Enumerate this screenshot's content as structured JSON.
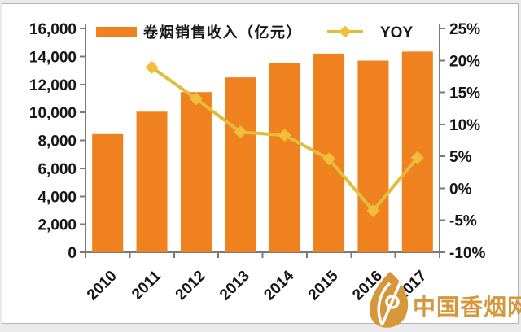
{
  "chart_data": {
    "type": "bar+line",
    "title": "",
    "xlabel": "",
    "categories": [
      "2010",
      "2011",
      "2012",
      "2013",
      "2014",
      "2015",
      "2016",
      "2017"
    ],
    "series": [
      {
        "name": "卷烟销售收入（亿元）",
        "type": "bar",
        "axis": "left",
        "values": [
          8450,
          10050,
          11450,
          12500,
          13550,
          14200,
          13700,
          14350
        ]
      },
      {
        "name": "YOY",
        "type": "line",
        "axis": "right",
        "values": [
          null,
          18.9,
          14.0,
          8.8,
          8.3,
          4.6,
          -3.5,
          4.8
        ]
      }
    ],
    "left_axis": {
      "min": 0,
      "max": 16000,
      "step": 2000,
      "tick_labels": [
        "16,000",
        "14,000",
        "12,000",
        "10,000",
        "8,000",
        "6,000",
        "4,000",
        "2,000",
        "0"
      ]
    },
    "right_axis": {
      "min": -10,
      "max": 25,
      "step": 5,
      "tick_labels": [
        "25%",
        "20%",
        "15%",
        "10%",
        "5%",
        "0%",
        "-5%",
        "-10%"
      ]
    },
    "grid": false,
    "legend_position": "top"
  },
  "legend": {
    "bar_label": "卷烟销售收入（亿元）",
    "line_label": "YOY"
  },
  "watermark": {
    "text": "中国香烟网"
  },
  "style": {
    "bar_color": "#F0811F",
    "line_color": "#E2BC3E",
    "marker_color": "#F2BF38",
    "axis_line_color": "#7A7A7A",
    "label_color": "#161616",
    "watermark_color": "#D6973B",
    "card_border_color": "#B5B5B5",
    "card_background": "#FFFFFF",
    "page_background": "#EAEAEA"
  }
}
